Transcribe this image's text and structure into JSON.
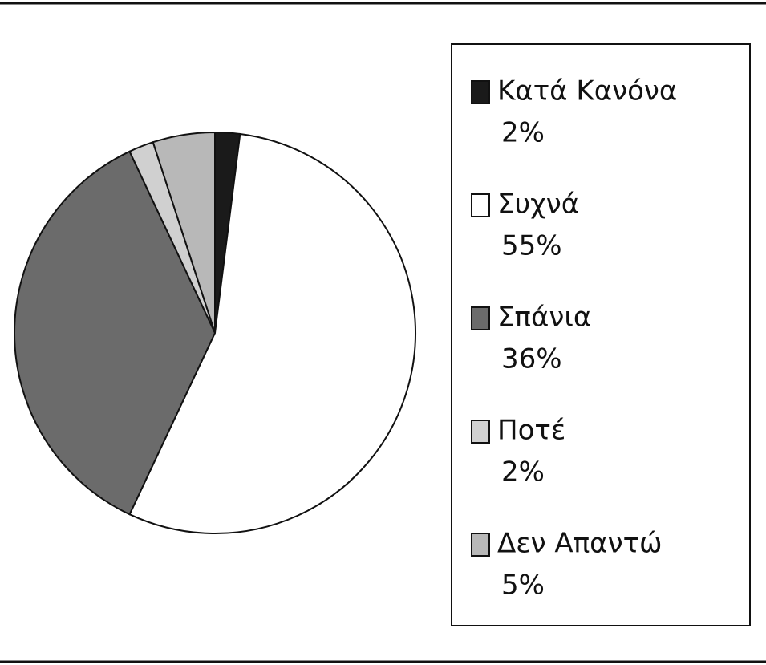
{
  "chart_data": {
    "type": "pie",
    "categories": [
      "Κατά Κανόνα",
      "Συχνά",
      "Σπάνια",
      "Ποτέ",
      "Δεν Απαντώ"
    ],
    "values": [
      2,
      55,
      36,
      2,
      5
    ],
    "value_labels": [
      "2%",
      "55%",
      "36%",
      "2%",
      "5%"
    ],
    "colors": [
      "#1a1a1a",
      "#ffffff",
      "#6b6b6b",
      "#d0d0d0",
      "#b8b8b8"
    ],
    "legend": "right"
  }
}
